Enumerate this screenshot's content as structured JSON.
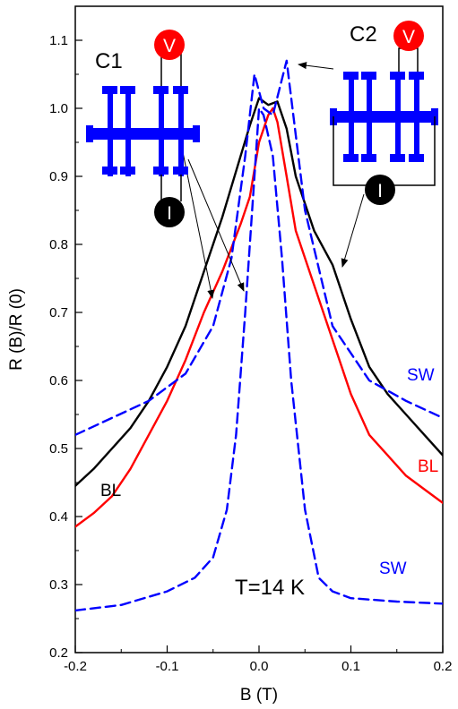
{
  "chart_data": {
    "type": "line",
    "xlabel": "B (T)",
    "ylabel": "R (B)/R (0)",
    "xlim": [
      -0.2,
      0.2
    ],
    "ylim": [
      0.2,
      1.15
    ],
    "xticks": [
      -0.2,
      -0.1,
      0.0,
      0.1,
      0.2
    ],
    "xtick_labels": [
      "-0.2",
      "-0.1",
      "0.0",
      "0.1",
      "0.2"
    ],
    "yticks": [
      0.2,
      0.3,
      0.4,
      0.5,
      0.6,
      0.7,
      0.8,
      0.9,
      1.0,
      1.1
    ],
    "ytick_labels": [
      "0.2",
      "0.3",
      "0.4",
      "0.5",
      "0.6",
      "0.7",
      "0.8",
      "0.9",
      "1.0",
      "1.1"
    ],
    "grid": false,
    "series": [
      {
        "color": "#000000",
        "style": "solid",
        "x": [
          -0.2,
          -0.18,
          -0.16,
          -0.14,
          -0.12,
          -0.1,
          -0.08,
          -0.06,
          -0.04,
          -0.02,
          -0.01,
          0.0,
          0.01,
          0.02,
          0.03,
          0.04,
          0.06,
          0.08,
          0.1,
          0.12,
          0.14,
          0.16,
          0.18,
          0.2
        ],
        "y": [
          0.445,
          0.47,
          0.5,
          0.53,
          0.57,
          0.62,
          0.68,
          0.76,
          0.84,
          0.93,
          0.975,
          1.015,
          1.005,
          1.01,
          0.97,
          0.9,
          0.82,
          0.77,
          0.69,
          0.62,
          0.58,
          0.55,
          0.52,
          0.49
        ]
      },
      {
        "color": "#ff0000",
        "style": "solid",
        "x": [
          -0.2,
          -0.18,
          -0.16,
          -0.14,
          -0.12,
          -0.1,
          -0.08,
          -0.06,
          -0.04,
          -0.02,
          -0.01,
          0.0,
          0.01,
          0.015,
          0.02,
          0.03,
          0.04,
          0.06,
          0.08,
          0.1,
          0.12,
          0.14,
          0.16,
          0.18,
          0.2
        ],
        "y": [
          0.385,
          0.405,
          0.43,
          0.47,
          0.52,
          0.57,
          0.63,
          0.7,
          0.76,
          0.83,
          0.87,
          0.95,
          0.99,
          1.0,
          0.98,
          0.9,
          0.82,
          0.74,
          0.66,
          0.58,
          0.52,
          0.49,
          0.46,
          0.44,
          0.42
        ]
      },
      {
        "color": "#0000ff",
        "style": "dashed",
        "x": [
          -0.2,
          -0.16,
          -0.12,
          -0.08,
          -0.05,
          -0.03,
          -0.015,
          -0.005,
          0.005,
          0.015,
          0.03,
          0.05,
          0.08,
          0.12,
          0.16,
          0.2
        ],
        "y": [
          0.52,
          0.545,
          0.57,
          0.61,
          0.68,
          0.78,
          0.93,
          1.05,
          1.0,
          0.99,
          1.07,
          0.85,
          0.68,
          0.6,
          0.57,
          0.545
        ]
      },
      {
        "color": "#0000ff",
        "style": "dashed",
        "x": [
          -0.2,
          -0.15,
          -0.1,
          -0.07,
          -0.05,
          -0.035,
          -0.025,
          -0.015,
          -0.005,
          0.0,
          0.005,
          0.015,
          0.025,
          0.035,
          0.05,
          0.065,
          0.08,
          0.1,
          0.15,
          0.2
        ],
        "y": [
          0.262,
          0.27,
          0.29,
          0.31,
          0.34,
          0.41,
          0.52,
          0.7,
          0.9,
          1.0,
          0.99,
          0.93,
          0.78,
          0.6,
          0.41,
          0.31,
          0.29,
          0.28,
          0.275,
          0.272
        ]
      }
    ],
    "annotations": {
      "c1": "C1",
      "c2": "C2",
      "v": "V",
      "i": "I",
      "sw_upper": "SW",
      "sw_lower": "SW",
      "bl_right": "BL",
      "bl_left": "BL",
      "temperature": "T=14 K"
    },
    "colors": {
      "black_series": "#000000",
      "red_series": "#ff0000",
      "blue_series": "#0000ff",
      "voltmeter": "#ff0000",
      "ammeter": "#000000",
      "device": "#0000ff"
    },
    "icons": [
      "hall-bar-device-icon",
      "voltmeter-icon",
      "current-source-icon",
      "arrow-icon"
    ]
  }
}
